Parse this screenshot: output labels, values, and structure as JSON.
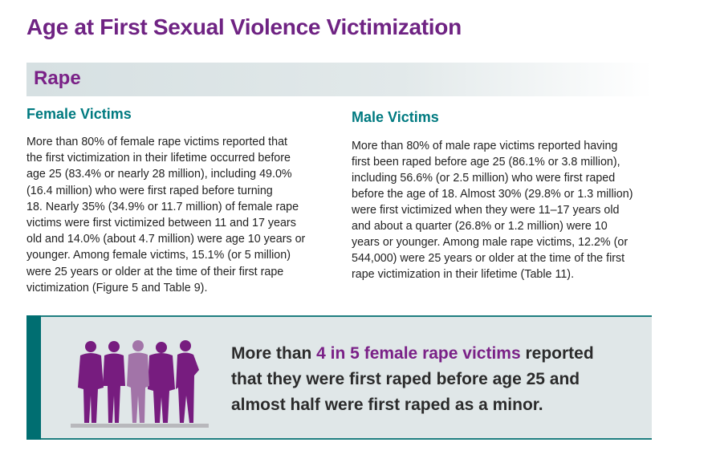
{
  "title": "Age at First Sexual Violence Victimization",
  "section": "Rape",
  "female": {
    "heading": "Female Victims",
    "lines": [
      "More than 80% of female rape victims reported that",
      "the first victimization in their lifetime occurred before",
      "age 25 (83.4% or nearly 28 million), including 49.0%",
      "(16.4 million) who were first raped before turning",
      "18. Nearly 35% (34.9% or 11.7 million) of female rape",
      "victims were first victimized between 11 and 17 years",
      "old and 14.0% (about 4.7 million) were age 10 years or",
      "younger. Among female victims, 15.1% (or 5 million)",
      "were 25 years or older at the time of their first rape",
      "victimization (Figure 5 and Table 9)."
    ]
  },
  "male": {
    "heading": "Male Victims",
    "lines": [
      "More than 80% of male rape victims reported having",
      "first been raped before age 25 (86.1% or 3.8 million),",
      "including 56.6% (or 2.5 million) who were first raped",
      "before the age of 18. Almost 30% (29.8% or 1.3 million)",
      "were first victimized when they were 11–17 years old",
      "and about a quarter (26.8% or 1.2 million) were 10",
      "years or younger. Among male rape victims, 12.2% (or",
      "544,000) were 25 years or older at the time of the first",
      "rape victimization in their lifetime (Table 11)."
    ]
  },
  "callout": {
    "pre": "More than ",
    "highlight": "4 in 5 female rape victims",
    "post": " reported",
    "line2": "that they were first raped before age 25 and",
    "line3": "almost half were first raped as a minor."
  },
  "colors": {
    "purple": "#7a2187",
    "teal": "#007a80",
    "light_purple": "#a274a8"
  }
}
